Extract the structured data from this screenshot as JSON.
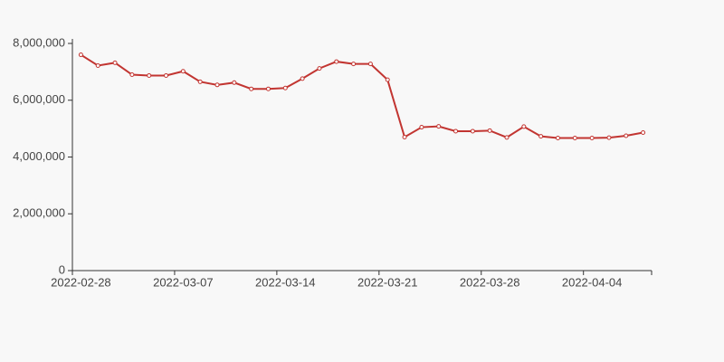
{
  "chart_data": {
    "type": "line",
    "categories": [
      "2022-02-28",
      null,
      null,
      null,
      null,
      null,
      "2022-03-07",
      null,
      null,
      null,
      null,
      null,
      "2022-03-14",
      null,
      null,
      null,
      null,
      null,
      "2022-03-21",
      null,
      null,
      null,
      null,
      null,
      "2022-03-28",
      null,
      null,
      null,
      null,
      null,
      "2022-04-04",
      null,
      null,
      null
    ],
    "series": [
      {
        "color": "#c23531",
        "values": [
          7600000,
          7220000,
          7320000,
          6900000,
          6870000,
          6870000,
          7020000,
          6650000,
          6540000,
          6620000,
          6400000,
          6400000,
          6430000,
          6760000,
          7120000,
          7360000,
          7280000,
          7280000,
          6720000,
          4700000,
          5050000,
          5080000,
          4910000,
          4910000,
          4930000,
          4690000,
          5070000,
          4730000,
          4670000,
          4670000,
          4670000,
          4680000,
          4750000,
          4860000
        ]
      }
    ],
    "ylim": [
      0,
      8000000
    ],
    "yticks": [
      0,
      {
        "value": 2000000,
        "label": "2,000,000"
      },
      {
        "value": 4000000,
        "label": "4,000,000"
      },
      {
        "value": 6000000,
        "label": "6,000,000"
      },
      {
        "value": 8000000,
        "label": "8,000,000"
      }
    ],
    "grid": false
  }
}
